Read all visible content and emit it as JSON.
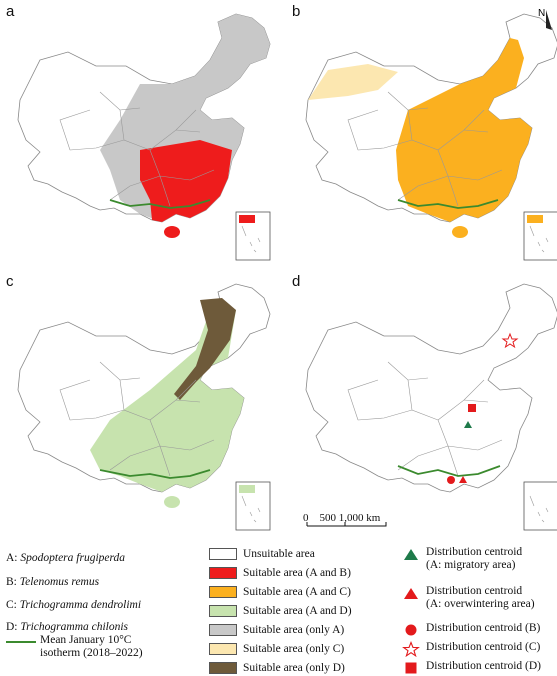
{
  "panels": [
    {
      "letter": "a",
      "fill": "#c8c8c8",
      "accent": "#ee1c1c"
    },
    {
      "letter": "b",
      "fill": "#fbb01f",
      "accent": "#fce7b0"
    },
    {
      "letter": "c",
      "fill": "#c7e3ae",
      "accent": "#6e5a3a"
    },
    {
      "letter": "d",
      "fill": "#ffffff",
      "accent": ""
    }
  ],
  "north_arrow": "N",
  "scale_bar": {
    "label": "0    500 1,000 km"
  },
  "species": [
    {
      "code": "A:",
      "name": "Spodoptera frugiperda"
    },
    {
      "code": "B:",
      "name": "Telenomus remus"
    },
    {
      "code": "C:",
      "name": "Trichogramma dendrolimi"
    },
    {
      "code": "D:",
      "name": "Trichogramma chilonis"
    }
  ],
  "isotherm": {
    "label_line1": "Mean January 10°C",
    "label_line2": "isotherm  (2018–2022)",
    "color": "#3b8a2e"
  },
  "areas": [
    {
      "label": "Unsuitable area",
      "color": "#ffffff"
    },
    {
      "label": "Suitable area (A and B)",
      "color": "#ee1c1c"
    },
    {
      "label": "Suitable area (A and C)",
      "color": "#fbb01f"
    },
    {
      "label": "Suitable area (A and D)",
      "color": "#c7e3ae"
    },
    {
      "label": "Suitable area (only A)",
      "color": "#c8c8c8"
    },
    {
      "label": "Suitable area (only C)",
      "color": "#fce7b0"
    },
    {
      "label": "Suitable area (only D)",
      "color": "#6e5a3a"
    }
  ],
  "centroids": [
    {
      "line1": "Distribution centroid",
      "line2": "(A: migratory area)",
      "symbol": "triangle-green",
      "color": "#1e7a4a"
    },
    {
      "line1": "Distribution centroid",
      "line2": "(A: overwintering area)",
      "symbol": "triangle-red",
      "color": "#e31a1c"
    },
    {
      "line1": "Distribution centroid (B)",
      "line2": "",
      "symbol": "circle-red",
      "color": "#e31a1c"
    },
    {
      "line1": "Distribution centroid (C)",
      "line2": "",
      "symbol": "star-red-outline",
      "color": "#e31a1c"
    },
    {
      "line1": "Distribution centroid (D)",
      "line2": "",
      "symbol": "square-red",
      "color": "#e31a1c"
    }
  ]
}
